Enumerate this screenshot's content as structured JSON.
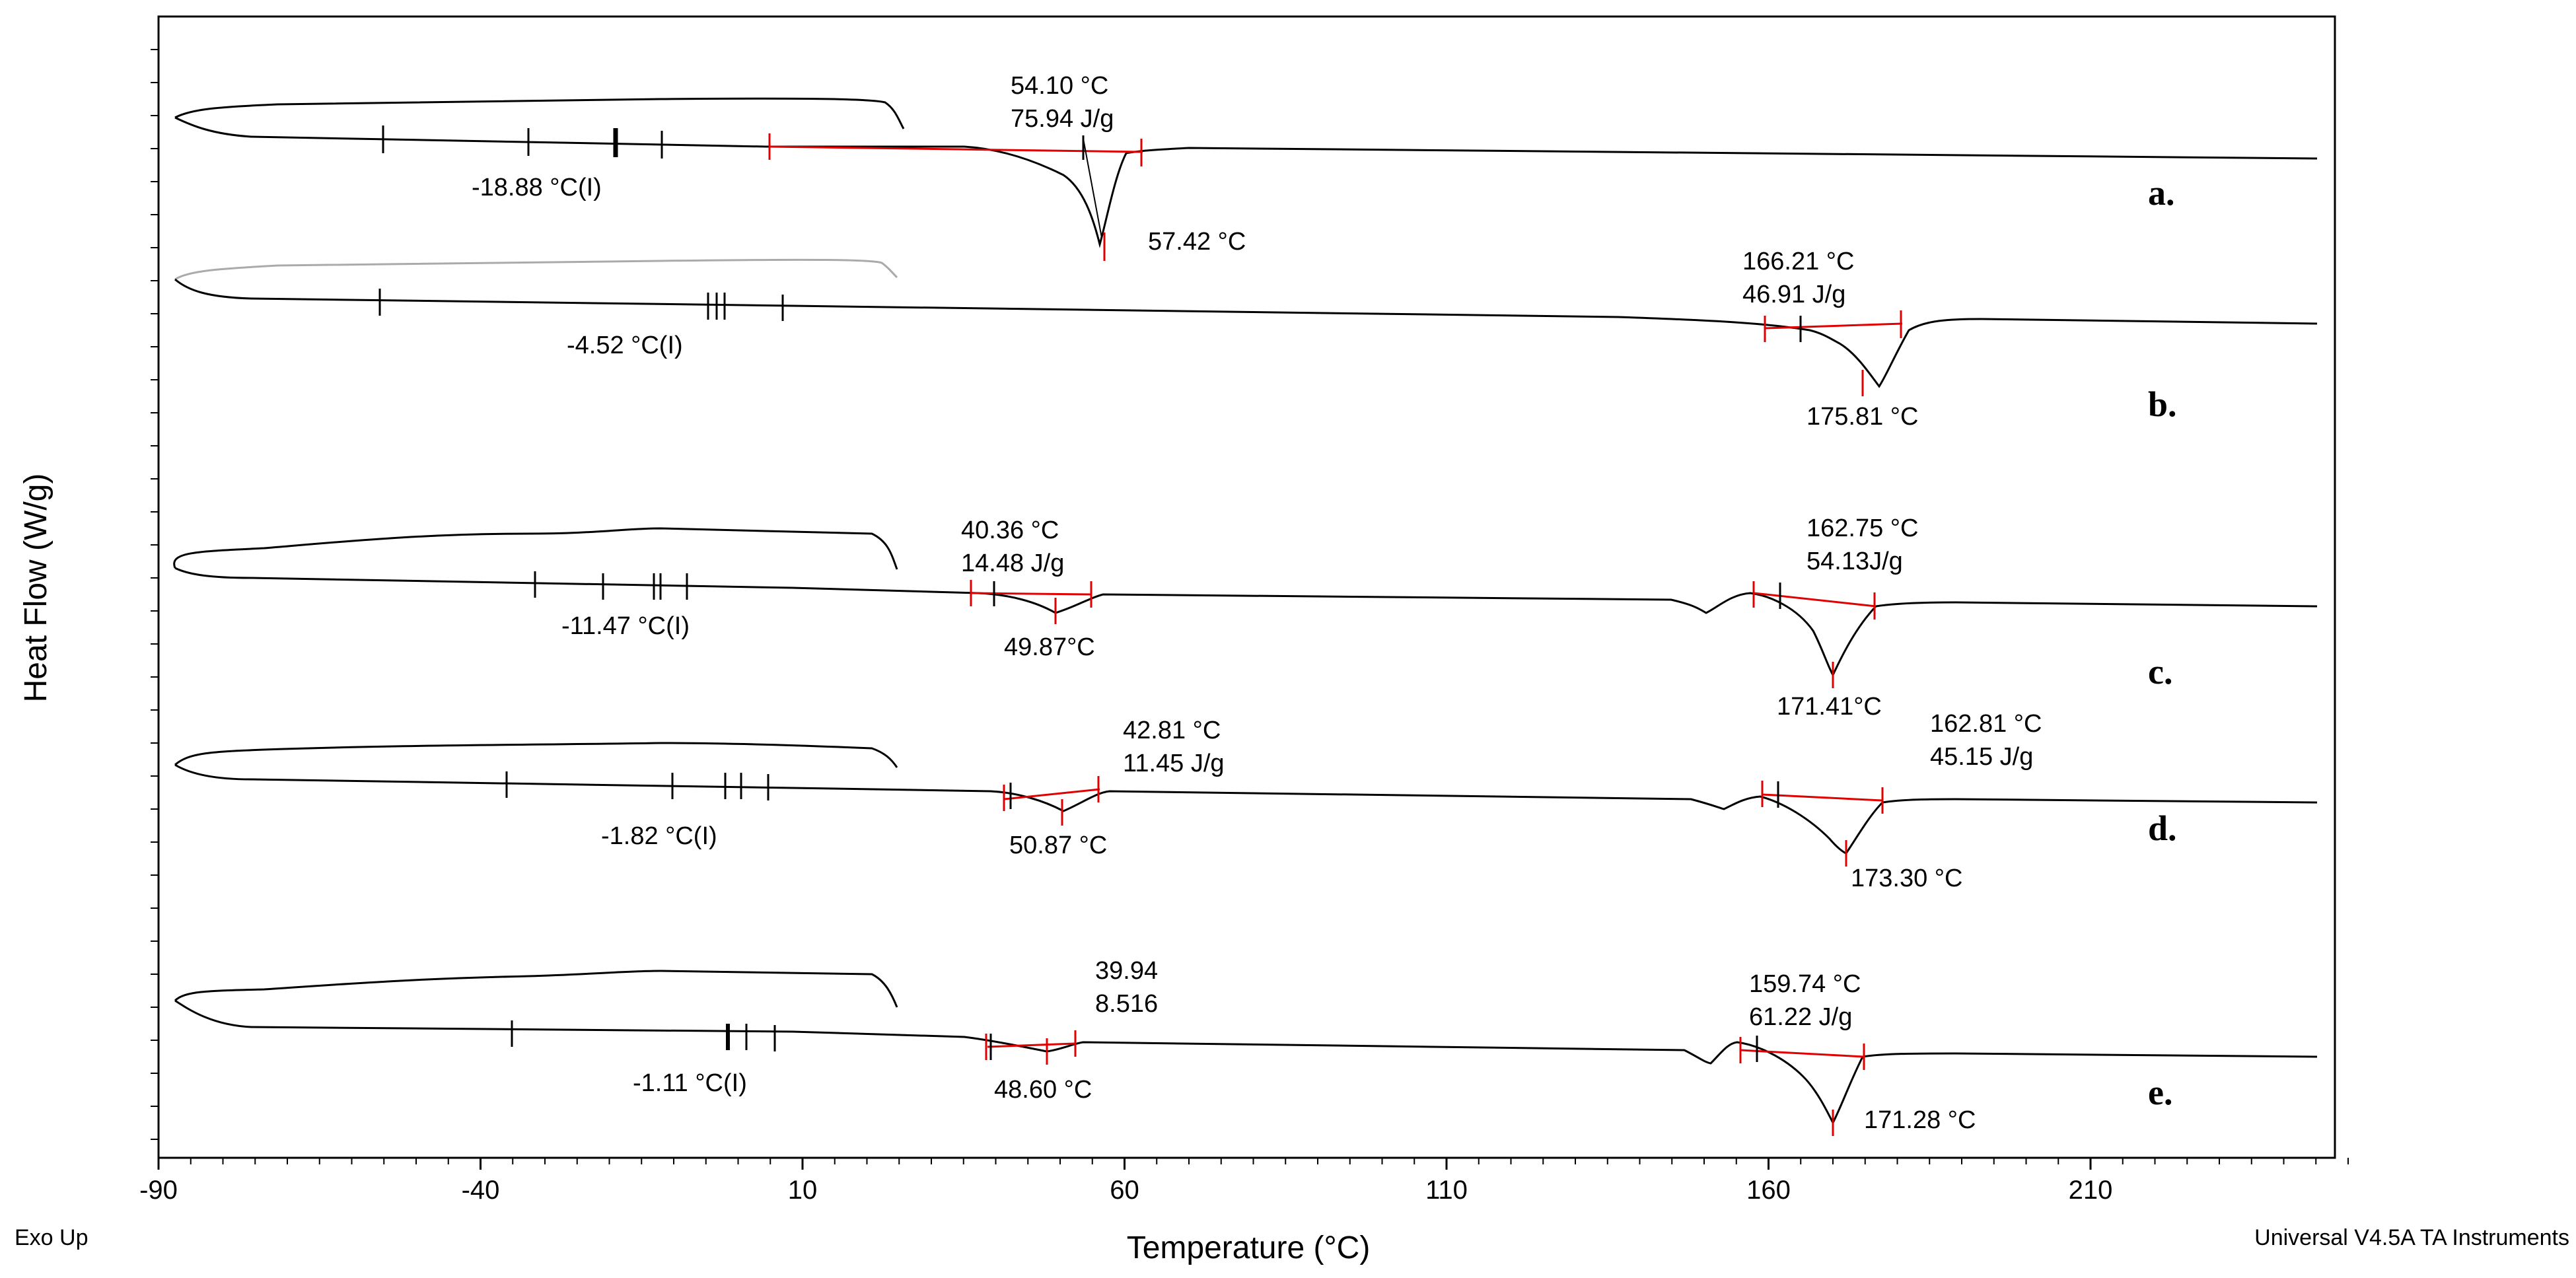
{
  "chart_data": {
    "type": "line",
    "title": "",
    "xlabel": "Temperature (°C)",
    "ylabel": "Heat Flow (W/g)",
    "xlim": [
      -90,
      260
    ],
    "xticks": [
      "-90",
      "-40",
      "10",
      "60",
      "110",
      "160",
      "210"
    ],
    "grid": false,
    "footer_left": "Exo Up",
    "footer_right": "Universal V4.5A TA Instruments",
    "series": [
      {
        "name": "a.",
        "glass_transition": "-18.88 °C(I)",
        "peaks": [
          {
            "onset": "54.10  °C",
            "enthalpy": "75.94  J/g",
            "peak": "57.42 °C"
          }
        ]
      },
      {
        "name": "b.",
        "glass_transition": "-4.52 °C(I)",
        "peaks": [
          {
            "onset": "166.21 °C",
            "enthalpy": "46.91  J/g",
            "peak": "175.81 °C"
          }
        ]
      },
      {
        "name": "c.",
        "glass_transition": "-11.47  °C(I)",
        "peaks": [
          {
            "onset": "40.36 °C",
            "enthalpy": "14.48 J/g",
            "peak": "49.87°C"
          },
          {
            "onset": "162.75 °C",
            "enthalpy": "54.13J/g",
            "peak": "171.41°C"
          }
        ]
      },
      {
        "name": "d.",
        "glass_transition": "-1.82  °C(I)",
        "peaks": [
          {
            "onset": "42.81 °C",
            "enthalpy": "11.45 J/g",
            "peak": "50.87  °C"
          },
          {
            "onset": "162.81 °C",
            "enthalpy": "45.15   J/g",
            "peak": "173.30 °C"
          }
        ]
      },
      {
        "name": "e.",
        "glass_transition": "-1.11 °C(I)",
        "peaks": [
          {
            "onset": "39.94",
            "enthalpy": "8.516",
            "peak": "48.60 °C"
          },
          {
            "onset": "159.74  °C",
            "enthalpy": "61.22  J/g",
            "peak": "171.28 °C"
          }
        ]
      }
    ]
  }
}
